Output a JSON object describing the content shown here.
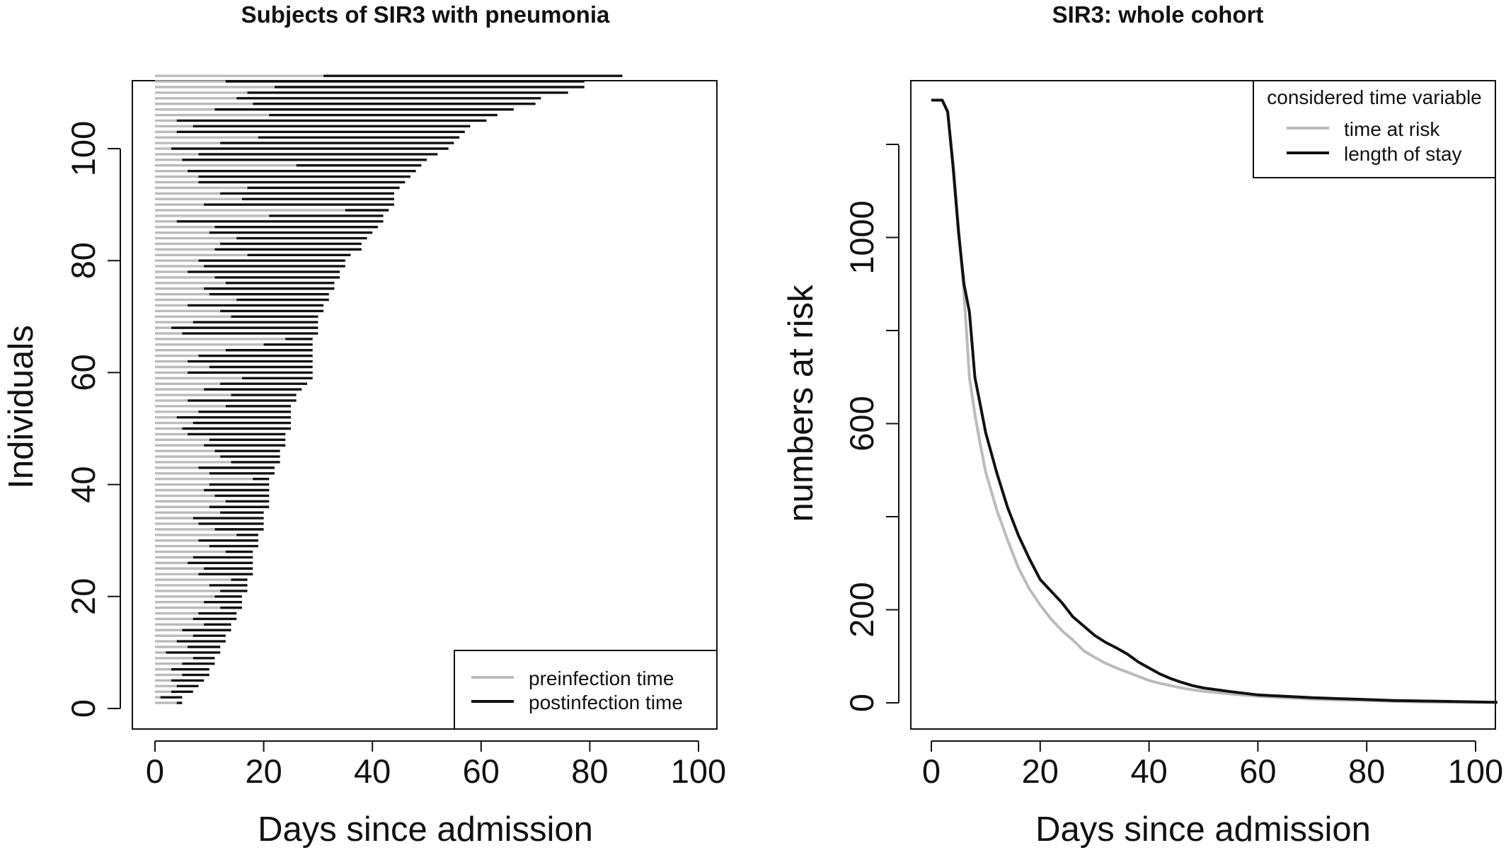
{
  "chart_data": [
    {
      "type": "line",
      "title": "Subjects of SIR3 with pneumonia",
      "xlabel": "Days since admission",
      "ylabel": "Individuals",
      "xlim": [
        0,
        104
      ],
      "ylim": [
        0,
        109
      ],
      "xticks": [
        "0",
        "20",
        "40",
        "60",
        "80",
        "100"
      ],
      "yticks": [
        "0",
        "20",
        "40",
        "60",
        "80",
        "100"
      ],
      "grid": false,
      "legend": {
        "position": "bottom-right",
        "entries": [
          {
            "label": "preinfection time",
            "color": "#bbbbbb"
          },
          {
            "label": "postinfection time",
            "color": "#111111"
          }
        ]
      },
      "series_colors": {
        "pre": "#bbbbbb",
        "post": "#111111"
      },
      "subjects": [
        [
          4,
          5
        ],
        [
          1,
          5
        ],
        [
          3,
          7
        ],
        [
          4,
          8
        ],
        [
          3,
          9
        ],
        [
          5,
          10
        ],
        [
          3,
          10
        ],
        [
          5,
          11
        ],
        [
          7,
          11
        ],
        [
          2,
          12
        ],
        [
          6,
          12
        ],
        [
          4,
          13
        ],
        [
          7,
          13
        ],
        [
          5,
          14
        ],
        [
          9,
          14
        ],
        [
          7,
          15
        ],
        [
          8,
          15
        ],
        [
          12,
          16
        ],
        [
          9,
          16
        ],
        [
          11,
          16
        ],
        [
          12,
          17
        ],
        [
          10,
          17
        ],
        [
          14,
          17
        ],
        [
          8,
          18
        ],
        [
          9,
          18
        ],
        [
          6,
          18
        ],
        [
          7,
          18
        ],
        [
          13,
          18
        ],
        [
          10,
          19
        ],
        [
          8,
          19
        ],
        [
          15,
          19
        ],
        [
          11,
          20
        ],
        [
          8,
          20
        ],
        [
          7,
          20
        ],
        [
          12,
          20
        ],
        [
          10,
          21
        ],
        [
          13,
          21
        ],
        [
          11,
          21
        ],
        [
          9,
          21
        ],
        [
          10,
          21
        ],
        [
          18,
          21
        ],
        [
          10,
          22
        ],
        [
          8,
          22
        ],
        [
          14,
          23
        ],
        [
          12,
          23
        ],
        [
          11,
          23
        ],
        [
          9,
          24
        ],
        [
          10,
          24
        ],
        [
          6,
          24
        ],
        [
          5,
          25
        ],
        [
          7,
          25
        ],
        [
          4,
          25
        ],
        [
          8,
          25
        ],
        [
          13,
          25
        ],
        [
          6,
          26
        ],
        [
          14,
          26
        ],
        [
          9,
          27
        ],
        [
          12,
          28
        ],
        [
          16,
          29
        ],
        [
          6,
          29
        ],
        [
          10,
          29
        ],
        [
          6,
          29
        ],
        [
          8,
          29
        ],
        [
          13,
          29
        ],
        [
          20,
          29
        ],
        [
          24,
          29
        ],
        [
          5,
          30
        ],
        [
          3,
          30
        ],
        [
          7,
          30
        ],
        [
          14,
          30
        ],
        [
          12,
          31
        ],
        [
          6,
          31
        ],
        [
          15,
          32
        ],
        [
          10,
          32
        ],
        [
          9,
          33
        ],
        [
          13,
          33
        ],
        [
          11,
          34
        ],
        [
          6,
          34
        ],
        [
          9,
          35
        ],
        [
          8,
          35
        ],
        [
          17,
          36
        ],
        [
          11,
          38
        ],
        [
          12,
          38
        ],
        [
          15,
          39
        ],
        [
          10,
          40
        ],
        [
          11,
          41
        ],
        [
          4,
          42
        ],
        [
          21,
          42
        ],
        [
          35,
          43
        ],
        [
          9,
          44
        ],
        [
          16,
          44
        ],
        [
          12,
          44
        ],
        [
          17,
          45
        ],
        [
          8,
          46
        ],
        [
          8,
          47
        ],
        [
          6,
          48
        ],
        [
          26,
          49
        ],
        [
          5,
          50
        ],
        [
          8,
          52
        ],
        [
          3,
          54
        ],
        [
          12,
          55
        ],
        [
          19,
          56
        ],
        [
          4,
          57
        ],
        [
          7,
          58
        ],
        [
          4,
          61
        ],
        [
          21,
          63
        ],
        [
          11,
          66
        ],
        [
          18,
          70
        ],
        [
          15,
          71
        ],
        [
          17,
          76
        ],
        [
          22,
          79
        ],
        [
          13,
          79
        ],
        [
          31,
          86
        ]
      ]
    },
    {
      "type": "line",
      "title": "SIR3: whole cohort",
      "xlabel": "Days since admission",
      "ylabel": "numbers at risk",
      "xlim": [
        0,
        104
      ],
      "ylim": [
        0,
        1300
      ],
      "xticks": [
        "0",
        "20",
        "40",
        "60",
        "80",
        "100"
      ],
      "yticks": [
        "0",
        "200",
        "600",
        "1000"
      ],
      "grid": false,
      "legend": {
        "position": "top-right",
        "title": "considered time variable",
        "entries": [
          {
            "label": "time at risk",
            "color": "#bbbbbb"
          },
          {
            "label": "length of stay",
            "color": "#111111"
          }
        ]
      },
      "series": [
        {
          "name": "time at risk",
          "color": "#bbbbbb",
          "x": [
            0,
            2,
            3,
            4,
            5,
            6,
            6.5,
            7,
            8,
            9,
            10,
            12,
            14,
            16,
            18,
            20,
            22,
            24,
            26,
            28,
            30,
            32,
            34,
            36,
            38,
            40,
            42,
            44,
            46,
            48,
            50,
            55,
            60,
            65,
            70,
            75,
            80,
            85,
            90,
            95,
            100,
            104
          ],
          "y": [
            1295,
            1295,
            1270,
            1160,
            1020,
            880,
            790,
            700,
            620,
            555,
            495,
            415,
            350,
            290,
            245,
            210,
            180,
            155,
            135,
            112,
            98,
            85,
            75,
            66,
            57,
            48,
            42,
            37,
            32,
            28,
            25,
            19,
            14,
            11,
            8,
            6,
            5,
            3,
            2,
            1,
            1,
            1
          ]
        },
        {
          "name": "length of stay",
          "color": "#111111",
          "x": [
            0,
            2,
            3,
            4,
            5,
            6,
            7,
            8,
            9,
            10,
            12,
            14,
            16,
            18,
            20,
            22,
            24,
            26,
            28,
            30,
            32,
            34,
            36,
            38,
            40,
            42,
            44,
            46,
            48,
            50,
            55,
            60,
            65,
            70,
            75,
            80,
            85,
            90,
            95,
            100,
            104
          ],
          "y": [
            1295,
            1295,
            1270,
            1150,
            1010,
            900,
            840,
            700,
            640,
            580,
            495,
            420,
            360,
            310,
            265,
            240,
            215,
            185,
            165,
            145,
            130,
            118,
            105,
            88,
            75,
            62,
            52,
            44,
            37,
            32,
            24,
            17,
            14,
            11,
            9,
            7,
            5,
            4,
            3,
            2,
            1
          ]
        }
      ]
    }
  ]
}
